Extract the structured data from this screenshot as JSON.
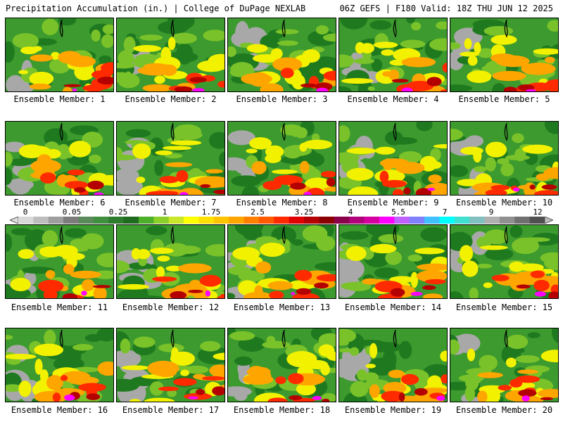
{
  "header": {
    "left_title": "Precipitation Accumulation (in.) | College of DuPage NEXLAB",
    "right_title": "06Z GEFS | F180 Valid: 18Z THU JUN 12 2025"
  },
  "panels": [
    {
      "label": "Ensemble Member: 1"
    },
    {
      "label": "Ensemble Member: 2"
    },
    {
      "label": "Ensemble Member: 3"
    },
    {
      "label": "Ensemble Member: 4"
    },
    {
      "label": "Ensemble Member: 5"
    },
    {
      "label": "Ensemble Member: 6"
    },
    {
      "label": "Ensemble Member: 7"
    },
    {
      "label": "Ensemble Member: 8"
    },
    {
      "label": "Ensemble Member: 9"
    },
    {
      "label": "Ensemble Member: 10"
    },
    {
      "label": "Ensemble Member: 11"
    },
    {
      "label": "Ensemble Member: 12"
    },
    {
      "label": "Ensemble Member: 13"
    },
    {
      "label": "Ensemble Member: 14"
    },
    {
      "label": "Ensemble Member: 15"
    },
    {
      "label": "Ensemble Member: 16"
    },
    {
      "label": "Ensemble Member: 17"
    },
    {
      "label": "Ensemble Member: 18"
    },
    {
      "label": "Ensemble Member: 19"
    },
    {
      "label": "Ensemble Member: 20"
    }
  ],
  "colorbar": {
    "tick_labels": [
      "0",
      "0.05",
      "0.25",
      "1",
      "1.75",
      "2.5",
      "3.25",
      "4",
      "5.5",
      "7",
      "9",
      "12"
    ],
    "colors": [
      "#d9d9d9",
      "#bdbdbd",
      "#9e9e9e",
      "#7c7c7c",
      "#5a8a5a",
      "#3f8f3f",
      "#2e7d2e",
      "#1f6b1f",
      "#4caf2a",
      "#8ccf2a",
      "#c8e62a",
      "#ffff00",
      "#ffe000",
      "#ffc400",
      "#ffa500",
      "#ff8000",
      "#ff5a00",
      "#ff2a00",
      "#e00000",
      "#b40000",
      "#8b0000",
      "#8b004b",
      "#b0007a",
      "#d4009f",
      "#ff00ff",
      "#c060ff",
      "#8080ff",
      "#40c0ff",
      "#00ffff",
      "#40e0d0",
      "#80c0c0",
      "#b0b0b0",
      "#909090",
      "#707070",
      "#505050"
    ]
  },
  "map_colors": {
    "gray": "#a8a8a8",
    "green_dark": "#1f7a1f",
    "green": "#3c9a2e",
    "green_light": "#7ac22a",
    "yellow": "#f2f200",
    "orange": "#ffa500",
    "red": "#ff2a00",
    "darkred": "#b40000",
    "magenta": "#ff00ff",
    "purple": "#a040e0"
  }
}
